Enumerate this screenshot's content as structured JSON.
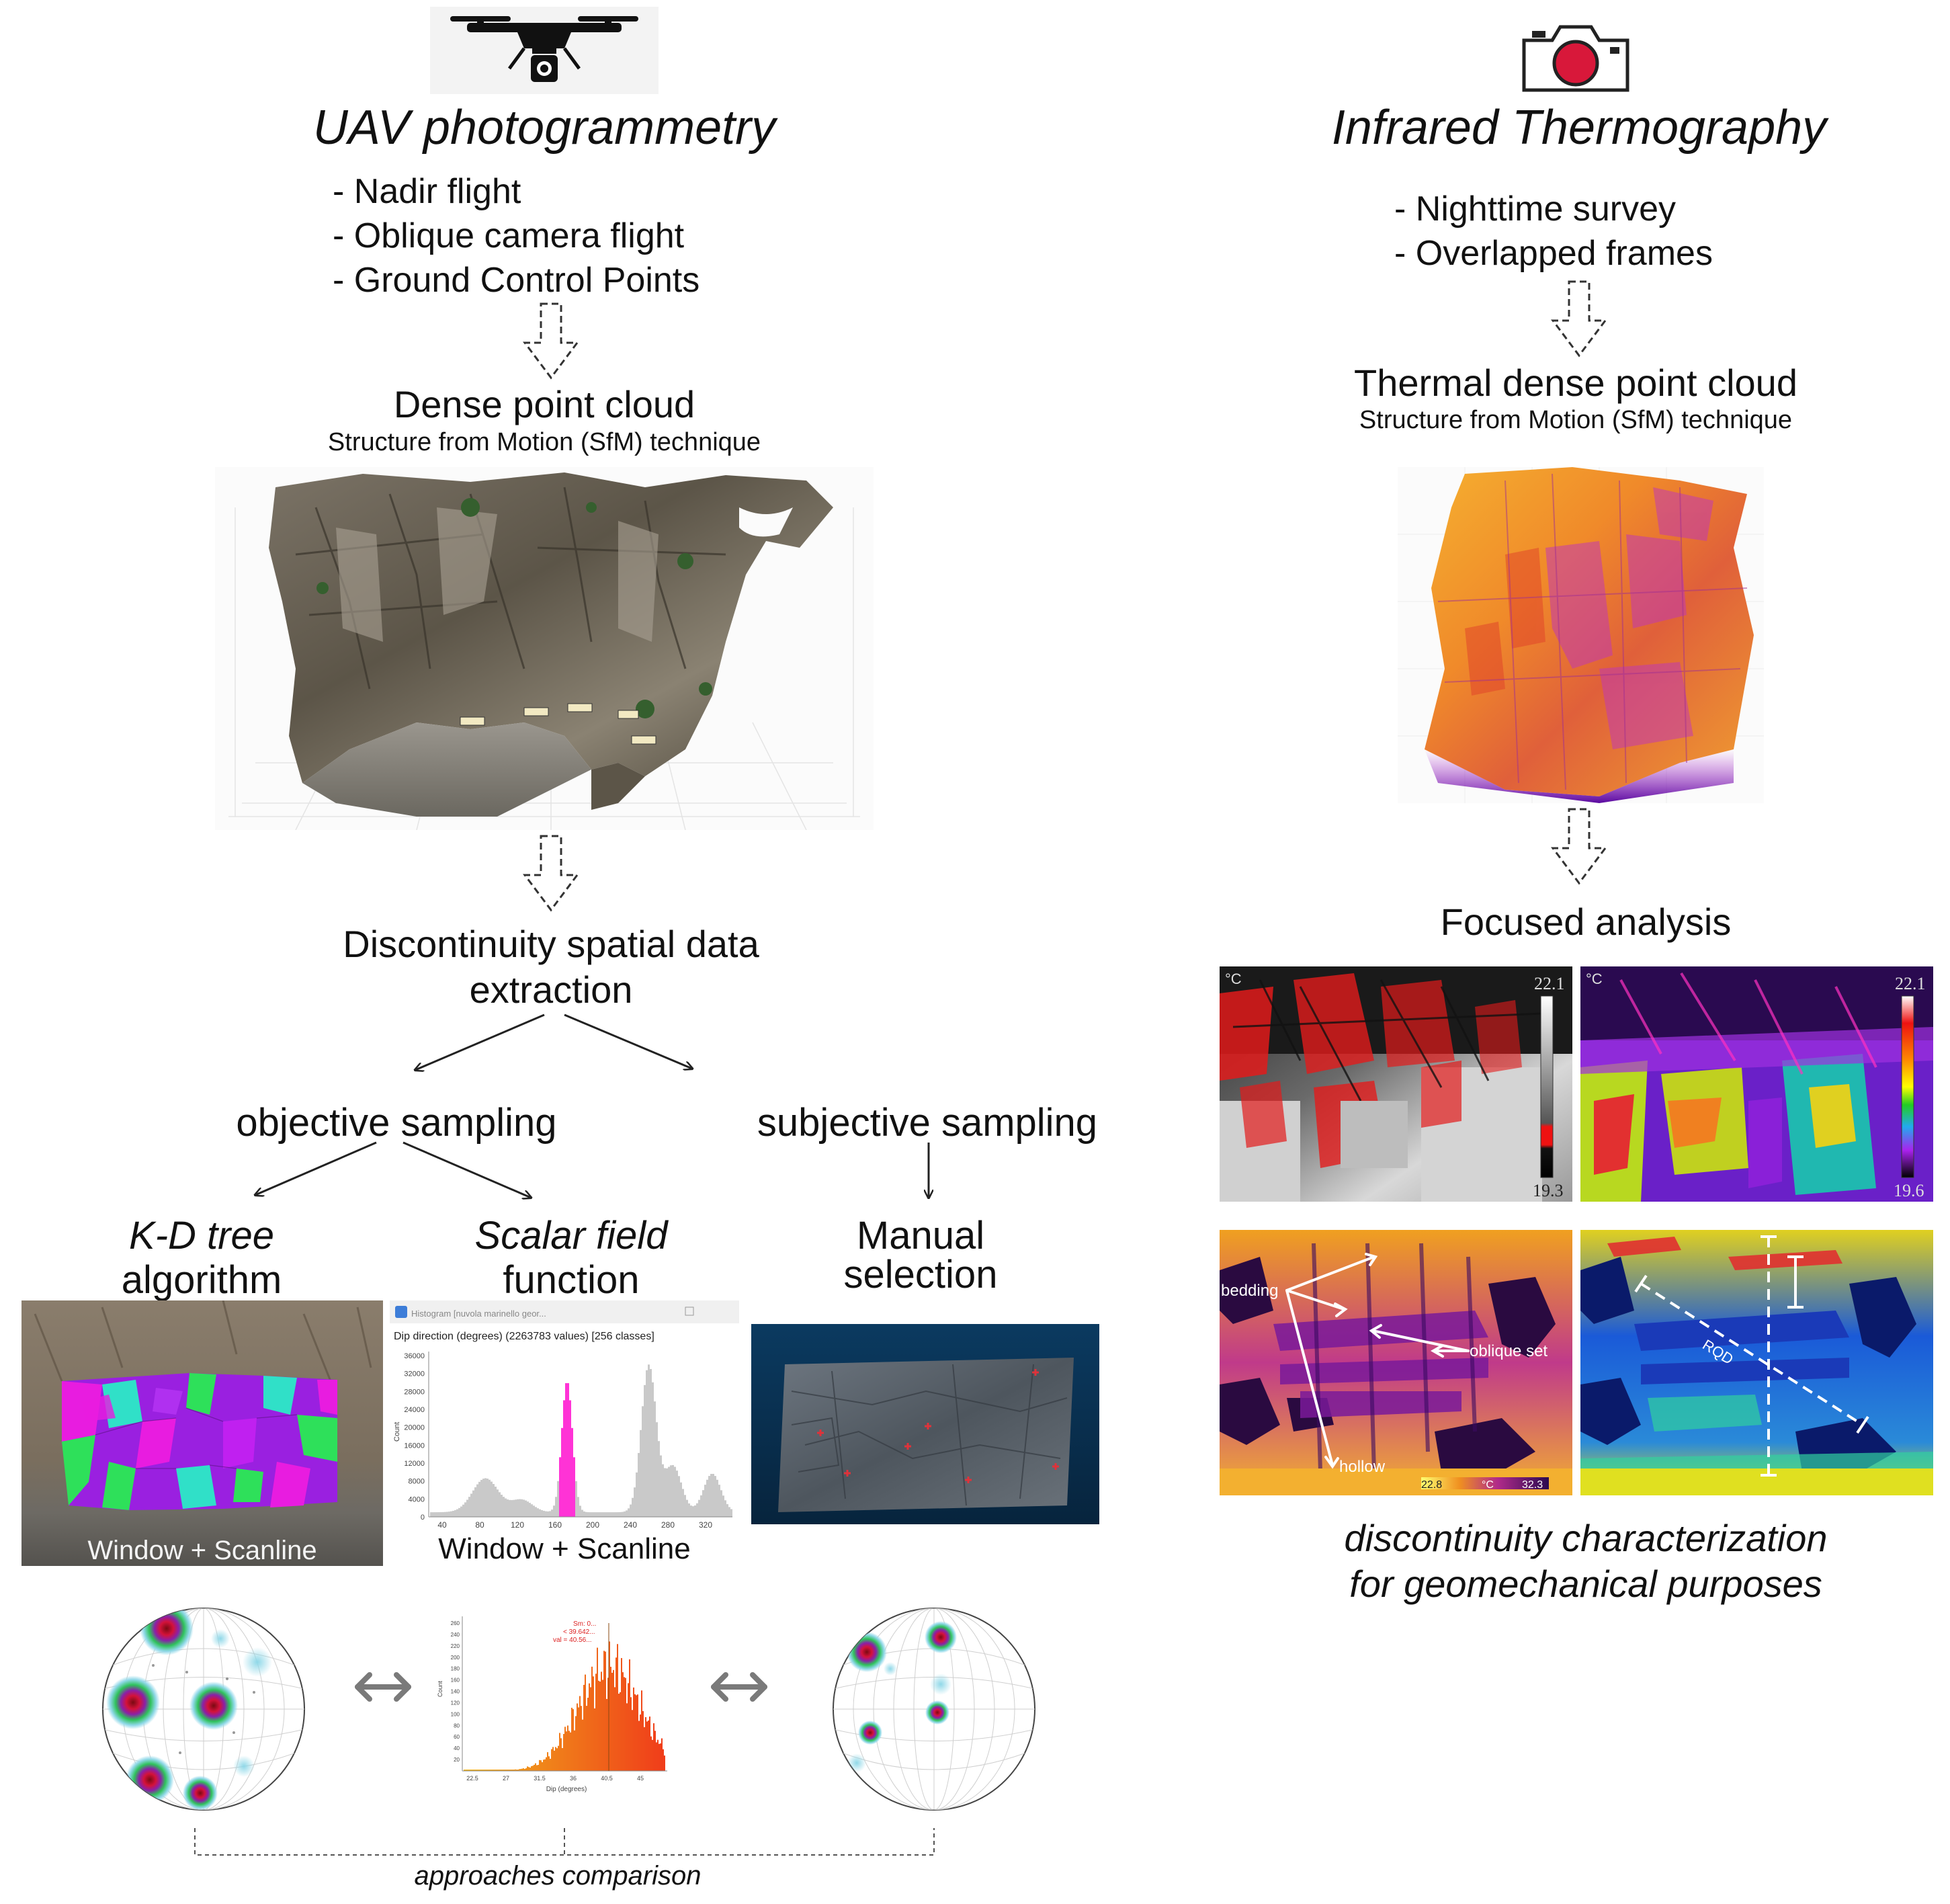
{
  "left": {
    "title": "UAV photogrammetry",
    "bullets": [
      "- Nadir flight",
      "- Oblique camera flight",
      "- Ground Control Points"
    ],
    "dense_title": "Dense point cloud",
    "dense_sub": "Structure from Motion (SfM) technique",
    "discontinuity_line1": "Discontinuity spatial data",
    "discontinuity_line2": "extraction",
    "objective": "objective sampling",
    "subjective": "subjective sampling",
    "kd_line1": "K-D tree",
    "kd_line2": "algorithm",
    "sf_line1": "Scalar field",
    "sf_line2": "function",
    "manual_line1": "Manual",
    "manual_line2": "selection",
    "window_scanline_1": "Window + Scanline",
    "window_scanline_2": "Window + Scanline",
    "comparison": "approaches comparison"
  },
  "histogram": {
    "window_title": "Histogram [nuvola marinello geor...",
    "header": "Dip direction (degrees) (2263783 values)  [256 classes]",
    "ylabel": "Count",
    "yticks": [
      "36000",
      "32000",
      "28000",
      "24000",
      "20000",
      "16000",
      "12000",
      "8000",
      "4000",
      "0"
    ],
    "xticks": [
      "40",
      "80",
      "120",
      "160",
      "200",
      "240",
      "280",
      "320"
    ]
  },
  "dip_hist": {
    "ylabel": "Count",
    "xlabel": "Dip (degrees)",
    "yticks": [
      "260",
      "240",
      "220",
      "200",
      "180",
      "160",
      "140",
      "120",
      "100",
      "80",
      "60",
      "40",
      "20"
    ],
    "xticks": [
      "22.5",
      "27",
      "31.5",
      "36",
      "40.5",
      "45"
    ],
    "annotations": [
      "Sm: 0...",
      "< 39.642...",
      "val = 40.56..."
    ]
  },
  "right": {
    "title": "Infrared Thermography",
    "bullets": [
      "- Nighttime survey",
      "- Overlapped frames"
    ],
    "thermal_title": "Thermal dense point cloud",
    "thermal_sub": "Structure from Motion (SfM) technique",
    "focused": "Focused analysis",
    "caption_line1": "discontinuity characterization",
    "caption_line2": "for geomechanical purposes"
  },
  "thermal_images": {
    "unit": "°C",
    "img1_max": "22.1",
    "img1_min": "19.3",
    "img2_max": "22.1",
    "img2_min": "19.6",
    "bar3_min": "22.8",
    "bar3_mid": "°C",
    "bar3_max": "32.3",
    "label_bedding": "bedding",
    "label_oblique": "oblique set",
    "label_hollow": "hollow",
    "label_rqd": "RQD"
  },
  "icons": {
    "drone": "drone-icon",
    "camera": "thermal-camera-icon"
  },
  "colors": {
    "kd_magenta": "#e81ce0",
    "kd_purple": "#9a20e0",
    "kd_green": "#2ee05a",
    "kd_cyan": "#30e0c8",
    "hist_grey": "#c9c9c9",
    "hist_pink": "#ff33d6",
    "dip_orange": "#f07a1a",
    "thermal_red": "#e21b1b",
    "camera_red": "#d8183a"
  }
}
